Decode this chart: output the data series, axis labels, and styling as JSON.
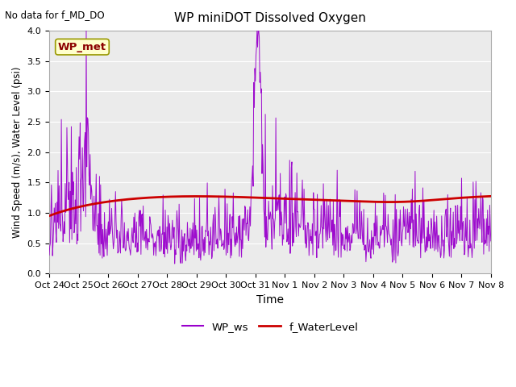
{
  "title": "WP miniDOT Dissolved Oxygen",
  "no_data_text": "No data for f_MD_DO",
  "xlabel": "Time",
  "ylabel": "Wind Speed (m/s), Water Level (psi)",
  "ylim": [
    0.0,
    4.0
  ],
  "yticks": [
    0.0,
    0.5,
    1.0,
    1.5,
    2.0,
    2.5,
    3.0,
    3.5,
    4.0
  ],
  "bg_color": "#ebebeb",
  "wp_met_box_color": "#ffffcc",
  "wp_met_text_color": "#8b0000",
  "wp_ws_color": "#9900cc",
  "f_waterlevel_color": "#cc0000",
  "xtick_labels": [
    "Oct 24",
    "Oct 25",
    "Oct 26",
    "Oct 27",
    "Oct 28",
    "Oct 29",
    "Oct 30",
    "Oct 31",
    "Nov 1",
    "Nov 2",
    "Nov 3",
    "Nov 4",
    "Nov 5",
    "Nov 6",
    "Nov 7",
    "Nov 8"
  ],
  "num_points_ws": 800,
  "seed": 12345
}
